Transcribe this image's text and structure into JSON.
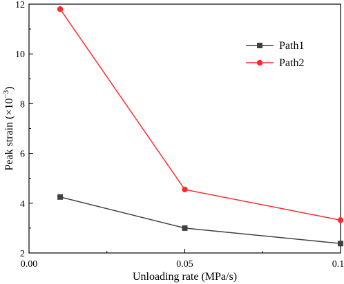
{
  "chart_data": {
    "type": "line",
    "xlabel": "Unloading rate (MPa/s)",
    "ylabel": {
      "base": "Peak strain (×10",
      "exponent": "−3",
      "close": ")"
    },
    "xlim": [
      0.0,
      0.1
    ],
    "ylim": [
      2,
      12
    ],
    "x_ticks": [
      0.0,
      0.05,
      0.1
    ],
    "x_tick_labels": [
      "0.00",
      "0.05",
      "0.10"
    ],
    "y_ticks": [
      2,
      4,
      6,
      8,
      10,
      12
    ],
    "y_tick_labels": [
      "2",
      "4",
      "6",
      "8",
      "10",
      "12"
    ],
    "grid": false,
    "legend_position": "top-right",
    "series": [
      {
        "name": "Path1",
        "color": "#404040",
        "marker": "square",
        "x": [
          0.01,
          0.05,
          0.1
        ],
        "y": [
          4.25,
          3.0,
          2.38
        ]
      },
      {
        "name": "Path2",
        "color": "#ff2a2a",
        "marker": "circle",
        "x": [
          0.01,
          0.05,
          0.1
        ],
        "y": [
          11.8,
          4.55,
          3.32
        ]
      }
    ]
  }
}
